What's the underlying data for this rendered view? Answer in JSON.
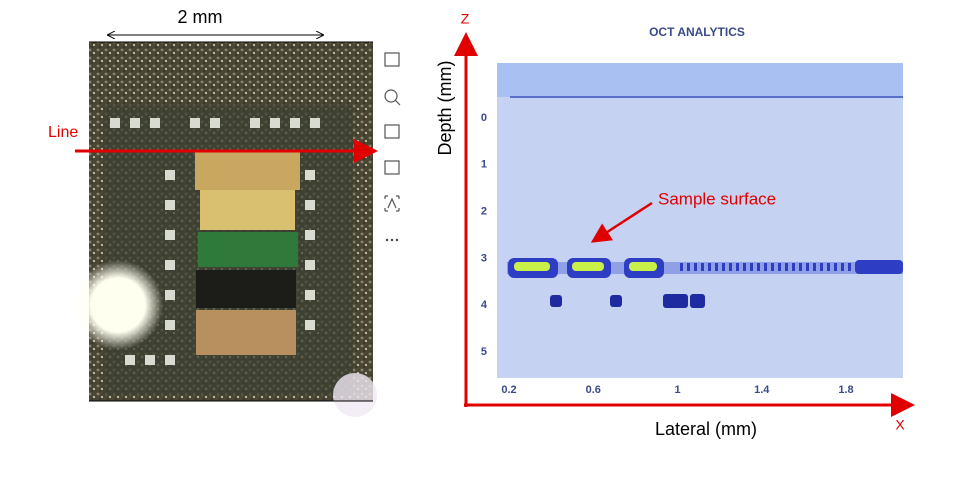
{
  "photo": {
    "scale_label": "2 mm",
    "line_label": "Line"
  },
  "oct": {
    "title": "OCT ANALYTICS",
    "z_label": "Z",
    "y_label": "Depth (mm)",
    "yticks": [
      0,
      1,
      2,
      3,
      4,
      5
    ],
    "xticks": [
      0.2,
      0.6,
      1,
      1.4,
      1.8
    ],
    "x_label": "Lateral (mm)",
    "x_axis_label": "X",
    "annotation": "Sample surface"
  }
}
